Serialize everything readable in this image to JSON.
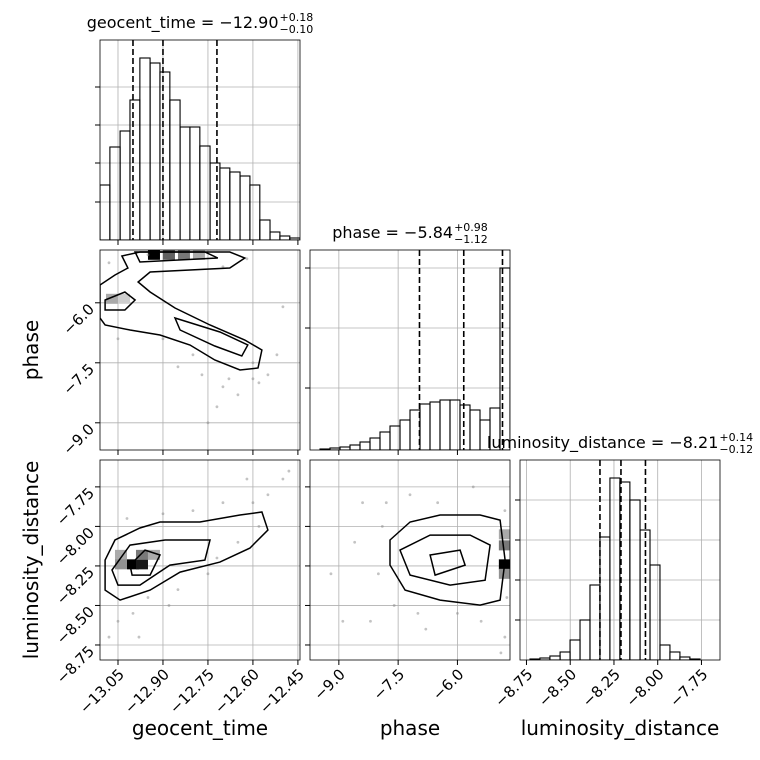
{
  "chart_data": [
    {
      "type": "histogram",
      "title": "geocent_time = −12.90",
      "title_upper": "+0.18",
      "title_lower": "−0.10",
      "bins": [
        -13.11,
        -13.077,
        -13.043,
        -13.01,
        -12.977,
        -12.943,
        -12.91,
        -12.877,
        -12.843,
        -12.81,
        -12.777,
        -12.743,
        -12.71,
        -12.677,
        -12.643,
        -12.61,
        -12.577,
        -12.543,
        -12.51,
        -12.477,
        -12.443
      ],
      "values": [
        55,
        93,
        109,
        140,
        182,
        177,
        168,
        140,
        113,
        113,
        94,
        77,
        72,
        68,
        64,
        55,
        20,
        8,
        4,
        2
      ],
      "quantiles": [
        -13.0,
        -12.9,
        -12.72
      ],
      "xlim": [
        -13.11,
        -12.443
      ],
      "ylim": [
        0,
        200
      ],
      "xticks": [
        -13.05,
        -12.9,
        -12.75,
        -12.6,
        -12.45
      ],
      "yticks": [
        38,
        77,
        115,
        153
      ],
      "grid": true,
      "color": "#000000"
    },
    {
      "type": "density",
      "ylabel": "phase",
      "xlim": [
        -13.11,
        -12.443
      ],
      "ylim": [
        -9.68,
        -4.68
      ],
      "xticks": [
        -13.05,
        -12.9,
        -12.75,
        -12.6,
        -12.45
      ],
      "yticks": [
        {
          "value": -6,
          "label": "−6.0"
        },
        {
          "value": -7.5,
          "label": "−7.5"
        },
        {
          "value": -9,
          "label": "−9.0"
        }
      ],
      "grid": true,
      "color": "#000000",
      "cells": {
        "x": [
          -12.93,
          -12.88,
          -12.83,
          -12.78,
          -13.07,
          -13.03
        ],
        "y": [
          -4.8,
          -4.8,
          -4.8,
          -4.8,
          -5.9,
          -5.9
        ],
        "values": [
          1,
          0.6,
          0.5,
          0.3,
          0.3,
          0.15
        ]
      },
      "points": {
        "x": [
          -12.6,
          -12.65,
          -12.7,
          -12.55,
          -12.8,
          -12.6,
          -12.72,
          -12.75,
          -12.9,
          -13.05,
          -12.62,
          -12.7,
          -12.5,
          -12.85,
          -12.58,
          -13.08,
          -12.95,
          -12.68,
          -12.77,
          -12.52
        ],
        "y": [
          -7.9,
          -8.3,
          -8.1,
          -7.8,
          -7.3,
          -7.5,
          -8.6,
          -9.0,
          -6.9,
          -6.9,
          -4.9,
          -5.1,
          -6.1,
          -7.6,
          -8.0,
          -5.0,
          -4.8,
          -7.9,
          -7.8,
          -7.3
        ]
      },
      "contours": [
        {
          "x": [
            -13.11,
            -13.06,
            -13.017,
            -13.037,
            -12.977,
            -12.677,
            -12.627,
            -12.677,
            -12.943,
            -12.983,
            -12.943,
            -12.86,
            -12.743,
            -12.627,
            -12.57,
            -12.583,
            -12.643,
            -12.727,
            -12.81,
            -12.91,
            -13.01,
            -13.093,
            -13.11
          ],
          "y": [
            -5.555,
            -5.305,
            -5.13,
            -4.83,
            -4.73,
            -4.73,
            -4.88,
            -5.13,
            -5.23,
            -5.48,
            -5.73,
            -6.13,
            -6.555,
            -6.93,
            -7.18,
            -7.63,
            -7.68,
            -7.43,
            -7.055,
            -6.805,
            -6.68,
            -6.555,
            -6.38
          ]
        },
        {
          "x": [
            -13.093,
            -13.027,
            -12.993,
            -13.027,
            -13.093
          ],
          "y": [
            -5.93,
            -5.73,
            -5.93,
            -6.18,
            -6.18
          ]
        },
        {
          "x": [
            -12.86,
            -12.71,
            -12.617,
            -12.637,
            -12.727,
            -12.843
          ],
          "y": [
            -6.38,
            -6.73,
            -7.055,
            -7.33,
            -7.08,
            -6.68
          ]
        },
        {
          "x": [
            -12.993,
            -12.76,
            -12.717,
            -12.977
          ],
          "y": [
            -4.73,
            -4.73,
            -4.88,
            -4.98
          ]
        }
      ]
    },
    {
      "type": "histogram",
      "title": "phase = −5.84",
      "title_upper": "+0.98",
      "title_lower": "−1.12",
      "bins": [
        -9.73,
        -9.477,
        -9.224,
        -8.971,
        -8.718,
        -8.465,
        -8.212,
        -7.959,
        -7.706,
        -7.453,
        -7.2,
        -6.947,
        -6.694,
        -6.441,
        -6.188,
        -5.935,
        -5.682,
        -5.429,
        -5.176,
        -4.923,
        -4.67
      ],
      "values": [
        0,
        1,
        2,
        3,
        5,
        8,
        12,
        18,
        24,
        30,
        40,
        46,
        48,
        50,
        50,
        45,
        40,
        30,
        42,
        182
      ],
      "quantiles": [
        -6.96,
        -5.84,
        -4.86
      ],
      "xlim": [
        -9.73,
        -4.67
      ],
      "ylim": [
        0,
        200
      ],
      "xticks": [
        -9,
        -7.5,
        -6
      ],
      "yticks": [
        62,
        122,
        182
      ],
      "grid": true,
      "color": "#000000"
    },
    {
      "type": "density",
      "xlabel": "geocent_time",
      "ylabel": "luminosity_distance",
      "xlim": [
        -13.11,
        -12.443
      ],
      "ylim": [
        -8.845,
        -7.58
      ],
      "xticks": [
        {
          "value": -13.05,
          "label": "−13.05"
        },
        {
          "value": -12.9,
          "label": "−12.90"
        },
        {
          "value": -12.75,
          "label": "−12.75"
        },
        {
          "value": -12.6,
          "label": "−12.60"
        },
        {
          "value": -12.45,
          "label": "−12.45"
        }
      ],
      "yticks": [
        {
          "value": -7.75,
          "label": "−7.75"
        },
        {
          "value": -8,
          "label": "−8.00"
        },
        {
          "value": -8.25,
          "label": "−8.25"
        },
        {
          "value": -8.5,
          "label": "−8.50"
        },
        {
          "value": -8.75,
          "label": "−8.75"
        }
      ],
      "grid": true,
      "color": "#000000",
      "cells": {
        "x": [
          -13.0,
          -12.97,
          -12.97,
          -13.04,
          -12.93,
          -13.04
        ],
        "y": [
          -8.24,
          -8.24,
          -8.18,
          -8.18,
          -8.18,
          -8.24
        ],
        "values": [
          1,
          0.9,
          0.5,
          0.3,
          0.3,
          0.4
        ]
      },
      "points": {
        "x": [
          -12.5,
          -12.55,
          -12.6,
          -12.7,
          -12.8,
          -12.9,
          -13.0,
          -13.05,
          -12.95,
          -12.85,
          -12.75,
          -12.65,
          -13.08,
          -12.98,
          -12.48,
          -12.62,
          -12.88,
          -13.02,
          -12.72,
          -12.58
        ],
        "y": [
          -7.7,
          -7.8,
          -7.85,
          -7.85,
          -7.9,
          -7.92,
          -8.55,
          -8.6,
          -8.45,
          -8.4,
          -8.3,
          -8.1,
          -8.7,
          -8.7,
          -7.65,
          -7.7,
          -8.5,
          -7.95,
          -8.2,
          -8.0
        ]
      },
      "contours": [
        {
          "x": [
            -13.093,
            -13.06,
            -12.977,
            -12.91,
            -12.777,
            -12.643,
            -12.57,
            -12.55,
            -12.61,
            -12.71,
            -12.843,
            -12.943,
            -13.043,
            -13.093
          ],
          "y": [
            -8.213,
            -8.086,
            -8.01,
            -7.972,
            -7.972,
            -7.928,
            -7.909,
            -8.023,
            -8.137,
            -8.226,
            -8.289,
            -8.403,
            -8.466,
            -8.403
          ]
        },
        {
          "x": [
            -13.07,
            -13.01,
            -12.893,
            -12.743,
            -12.76,
            -12.877,
            -12.977,
            -13.05
          ],
          "y": [
            -8.276,
            -8.118,
            -8.086,
            -8.086,
            -8.213,
            -8.245,
            -8.371,
            -8.371
          ]
        },
        {
          "x": [
            -13.01,
            -12.96,
            -12.91,
            -12.943,
            -13.003
          ],
          "y": [
            -8.245,
            -8.15,
            -8.181,
            -8.308,
            -8.308
          ]
        }
      ]
    },
    {
      "type": "density",
      "xlabel": "phase",
      "xlim": [
        -9.73,
        -4.67
      ],
      "ylim": [
        -8.845,
        -7.58
      ],
      "xticks": [
        {
          "value": -9,
          "label": "−9.0"
        },
        {
          "value": -7.5,
          "label": "−7.5"
        },
        {
          "value": -6,
          "label": "−6.0"
        }
      ],
      "yticks": [
        -7.75,
        -8,
        -8.25,
        -8.5,
        -8.75
      ],
      "grid": true,
      "color": "#000000",
      "cells": {
        "x": [
          -4.8,
          -4.8,
          -4.8,
          -4.8
        ],
        "y": [
          -8.24,
          -8.12,
          -8.3,
          -8.05
        ],
        "values": [
          1,
          0.5,
          0.4,
          0.3
        ]
      },
      "points": {
        "x": [
          -8.4,
          -7.8,
          -7.2,
          -6.5,
          -8.0,
          -7.6,
          -7.0,
          -6.0,
          -5.4,
          -4.8,
          -4.75,
          -4.8,
          -8.2,
          -9.2,
          -8.6,
          -6.8,
          -5.6,
          -7.9,
          -4.9,
          -8.9
        ],
        "y": [
          -7.85,
          -7.85,
          -7.8,
          -7.85,
          -8.3,
          -8.5,
          -8.55,
          -8.55,
          -8.6,
          -8.7,
          -8.45,
          -7.9,
          -8.6,
          -8.3,
          -8.1,
          -8.65,
          -7.75,
          -8.0,
          -8.8,
          -8.6
        ]
      },
      "contours": [
        {
          "x": [
            -7.705,
            -7.198,
            -6.439,
            -5.426,
            -4.92,
            -4.793,
            -4.92,
            -5.426,
            -6.439,
            -7.325,
            -7.705
          ],
          "y": [
            -8.086,
            -7.972,
            -7.928,
            -7.928,
            -7.96,
            -8.213,
            -8.466,
            -8.498,
            -8.466,
            -8.403,
            -8.245
          ]
        },
        {
          "x": [
            -7.452,
            -6.692,
            -5.68,
            -5.173,
            -5.3,
            -6.186,
            -7.198
          ],
          "y": [
            -8.15,
            -8.055,
            -8.055,
            -8.118,
            -8.34,
            -8.371,
            -8.308
          ]
        },
        {
          "x": [
            -6.692,
            -5.933,
            -5.806,
            -6.566
          ],
          "y": [
            -8.181,
            -8.15,
            -8.245,
            -8.308
          ]
        }
      ]
    },
    {
      "type": "histogram",
      "title": "luminosity_distance = −8.21",
      "title_upper": "+0.14",
      "title_lower": "−0.12",
      "xlabel": "luminosity_distance",
      "bins": [
        -8.787,
        -8.73,
        -8.673,
        -8.616,
        -8.558,
        -8.501,
        -8.444,
        -8.387,
        -8.33,
        -8.273,
        -8.216,
        -8.159,
        -8.101,
        -8.044,
        -7.987,
        -7.93,
        -7.873,
        -7.816,
        -7.758,
        -7.701,
        -7.644
      ],
      "values": [
        0,
        1,
        2,
        4,
        8,
        20,
        40,
        75,
        123,
        182,
        178,
        160,
        130,
        95,
        15,
        8,
        3,
        1,
        0,
        0
      ],
      "quantiles": [
        -8.33,
        -8.21,
        -8.07
      ],
      "xlim": [
        -8.787,
        -7.644
      ],
      "ylim": [
        0,
        200
      ],
      "xticks": [
        {
          "value": -8.75,
          "label": "−8.75"
        },
        {
          "value": -8.5,
          "label": "−8.50"
        },
        {
          "value": -8.25,
          "label": "−8.25"
        },
        {
          "value": -8,
          "label": "−8.00"
        },
        {
          "value": -7.75,
          "label": "−7.75"
        }
      ],
      "yticks": [
        40,
        80,
        120,
        160
      ],
      "grid": true,
      "color": "#000000"
    }
  ]
}
